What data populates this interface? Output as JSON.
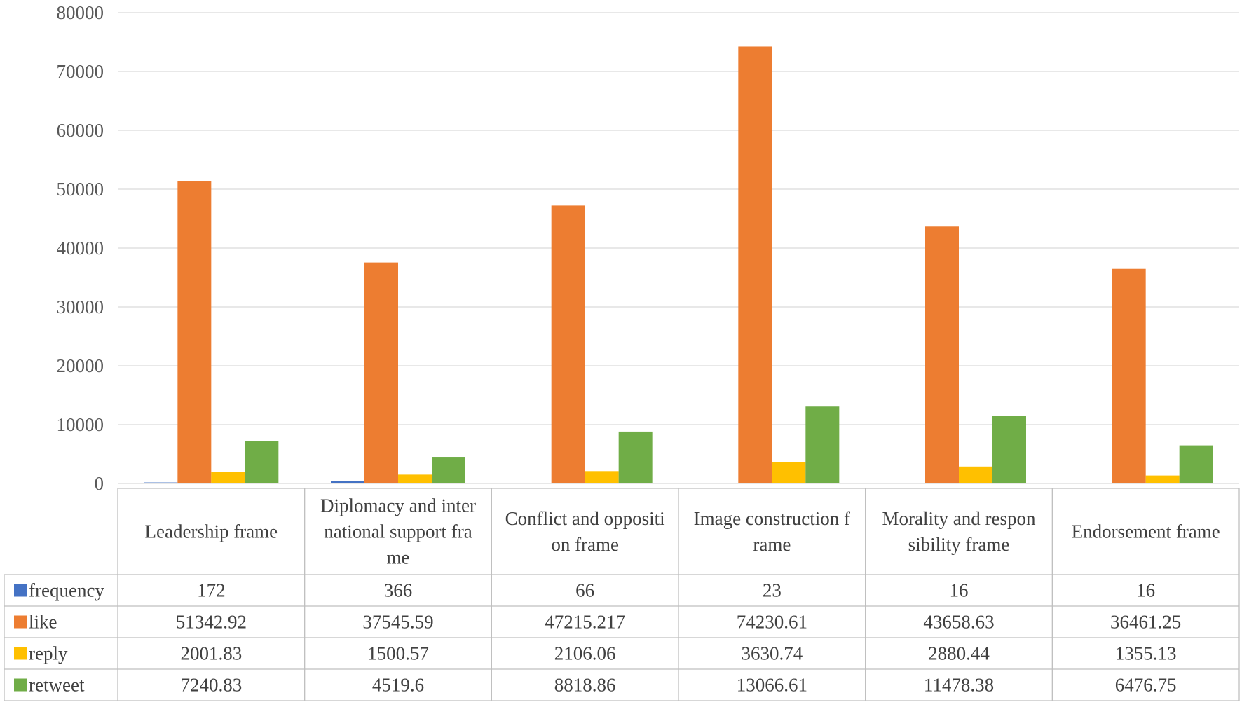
{
  "chart_data": {
    "type": "bar",
    "title": "",
    "xlabel": "",
    "ylabel": "",
    "ylim": [
      0,
      80000
    ],
    "yticks": [
      0,
      10000,
      20000,
      30000,
      40000,
      50000,
      60000,
      70000,
      80000
    ],
    "ytick_labels": [
      "0",
      "10000",
      "20000",
      "30000",
      "40000",
      "50000",
      "60000",
      "70000",
      "80000"
    ],
    "grid": true,
    "legend": "data-table-left",
    "categories": [
      "Leadership frame",
      "Diplomacy and international support frame",
      "Conflict and opposition frame",
      "Image construction frame",
      "Morality and responsibility frame",
      "Endorsement frame"
    ],
    "category_label_lines": [
      [
        "Leadership frame"
      ],
      [
        "Diplomacy and inter",
        "national support fra",
        "me"
      ],
      [
        "Conflict and oppositi",
        "on frame"
      ],
      [
        "Image construction f",
        "rame"
      ],
      [
        "Morality and respon",
        "sibility frame"
      ],
      [
        "Endorsement frame"
      ]
    ],
    "series": [
      {
        "name": "frequency",
        "color": "#4472C4",
        "values": [
          172,
          366,
          66,
          23,
          16,
          16
        ],
        "labels": [
          "172",
          "366",
          "66",
          "23",
          "16",
          "16"
        ]
      },
      {
        "name": "like",
        "color": "#ED7D31",
        "values": [
          51342.92,
          37545.59,
          47215.217,
          74230.61,
          43658.63,
          36461.25
        ],
        "labels": [
          "51342.92",
          "37545.59",
          "47215.217",
          "74230.61",
          "43658.63",
          "36461.25"
        ]
      },
      {
        "name": "reply",
        "color": "#FFC000",
        "values": [
          2001.83,
          1500.57,
          2106.06,
          3630.74,
          2880.44,
          1355.13
        ],
        "labels": [
          "2001.83",
          "1500.57",
          "2106.06",
          "3630.74",
          "2880.44",
          "1355.13"
        ]
      },
      {
        "name": "retweet",
        "color": "#70AD47",
        "values": [
          7240.83,
          4519.6,
          8818.86,
          13066.61,
          11478.38,
          6476.75
        ],
        "labels": [
          "7240.83",
          "4519.6",
          "8818.86",
          "13066.61",
          "11478.38",
          "6476.75"
        ]
      }
    ]
  }
}
